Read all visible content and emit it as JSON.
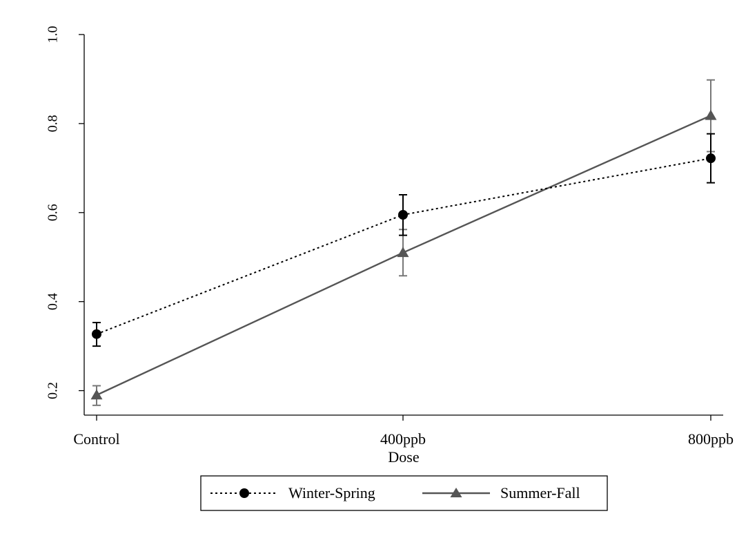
{
  "chart_data": {
    "type": "line",
    "title": "",
    "xlabel": "Dose",
    "ylabel": "",
    "categories": [
      "Control",
      "400ppb",
      "800ppb"
    ],
    "yticks": [
      "0.2",
      "0.4",
      "0.6",
      "0.8",
      "1.0"
    ],
    "ylim": [
      0.145,
      1.0
    ],
    "grid": false,
    "legend_position": "bottom",
    "series": [
      {
        "name": "Winter-Spring",
        "line_style": "dotted",
        "marker": "circle",
        "color": "#000000",
        "values": [
          0.327,
          0.595,
          0.722
        ],
        "ci_low": [
          0.3,
          0.549,
          0.667
        ],
        "ci_high": [
          0.353,
          0.64,
          0.777
        ]
      },
      {
        "name": "Summer-Fall",
        "line_style": "solid",
        "marker": "triangle",
        "color": "#555555",
        "values": [
          0.19,
          0.51,
          0.818
        ],
        "ci_low": [
          0.167,
          0.458,
          0.737
        ],
        "ci_high": [
          0.211,
          0.562,
          0.898
        ]
      }
    ]
  }
}
